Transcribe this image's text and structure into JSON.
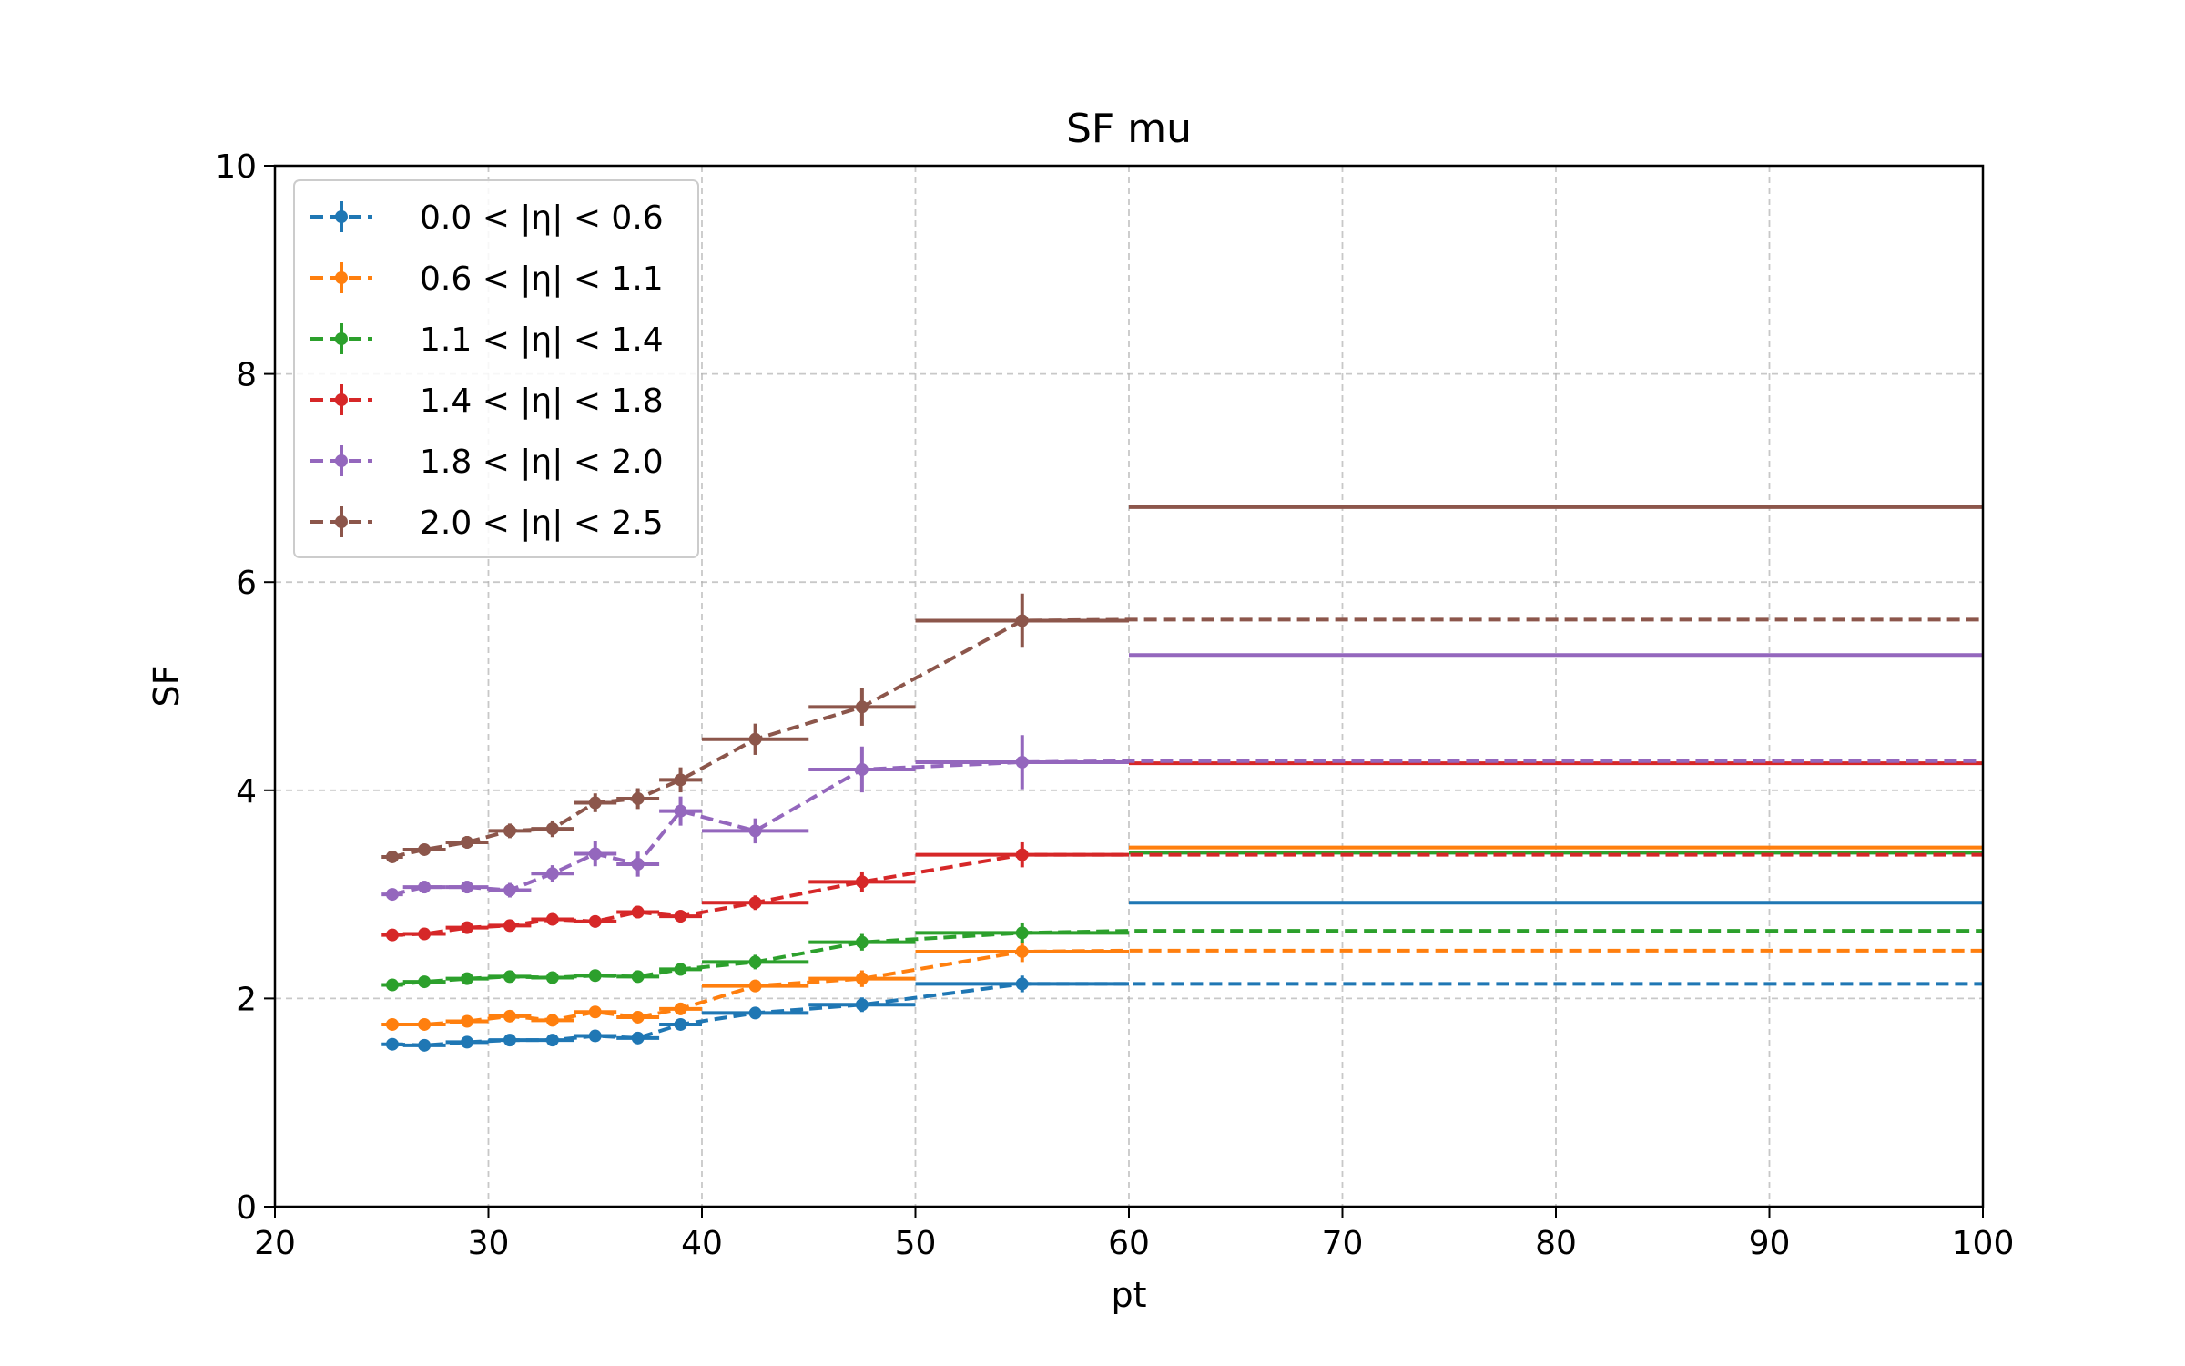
{
  "chart_data": {
    "type": "line",
    "title": "SF mu",
    "xlabel": "pt",
    "ylabel": "SF",
    "xlim": [
      20,
      100
    ],
    "ylim": [
      0,
      10
    ],
    "xticks": [
      20,
      30,
      40,
      50,
      60,
      70,
      80,
      90,
      100
    ],
    "yticks": [
      0,
      2,
      4,
      6,
      8,
      10
    ],
    "grid": true,
    "legend_position": "top-left",
    "bin_edges": [
      25,
      26,
      28,
      30,
      32,
      34,
      36,
      38,
      40,
      45,
      50,
      60
    ],
    "series": [
      {
        "name": "0.0 < |η| < 0.6",
        "color": "#1f77b4",
        "x": [
          25.5,
          27,
          29,
          31,
          33,
          35,
          37,
          39,
          42.5,
          47.5,
          55
        ],
        "y": [
          1.56,
          1.55,
          1.58,
          1.6,
          1.6,
          1.64,
          1.62,
          1.75,
          1.86,
          1.94,
          2.14
        ],
        "yerr": [
          0.03,
          0.03,
          0.03,
          0.03,
          0.03,
          0.04,
          0.04,
          0.05,
          0.05,
          0.07,
          0.08
        ],
        "dashed_tail": 2.14,
        "solid_high_pt": 2.92
      },
      {
        "name": "0.6 < |η| < 1.1",
        "color": "#ff7f0e",
        "x": [
          25.5,
          27,
          29,
          31,
          33,
          35,
          37,
          39,
          42.5,
          47.5,
          55
        ],
        "y": [
          1.75,
          1.75,
          1.78,
          1.83,
          1.79,
          1.87,
          1.82,
          1.9,
          2.12,
          2.19,
          2.45
        ],
        "yerr": [
          0.03,
          0.03,
          0.04,
          0.05,
          0.05,
          0.05,
          0.05,
          0.06,
          0.06,
          0.08,
          0.1
        ],
        "dashed_tail": 2.46,
        "solid_high_pt": 3.45
      },
      {
        "name": "1.1 < |η| < 1.4",
        "color": "#2ca02c",
        "x": [
          25.5,
          27,
          29,
          31,
          33,
          35,
          37,
          39,
          42.5,
          47.5,
          55
        ],
        "y": [
          2.13,
          2.16,
          2.19,
          2.21,
          2.2,
          2.22,
          2.21,
          2.28,
          2.35,
          2.54,
          2.63
        ],
        "yerr": [
          0.04,
          0.04,
          0.04,
          0.05,
          0.05,
          0.05,
          0.05,
          0.06,
          0.07,
          0.08,
          0.1
        ],
        "dashed_tail": 2.65,
        "solid_high_pt": 3.4
      },
      {
        "name": "1.4 < |η| < 1.8",
        "color": "#d62728",
        "x": [
          25.5,
          27,
          29,
          31,
          33,
          35,
          37,
          39,
          42.5,
          47.5,
          55
        ],
        "y": [
          2.61,
          2.62,
          2.68,
          2.7,
          2.76,
          2.74,
          2.83,
          2.79,
          2.92,
          3.12,
          3.38
        ],
        "yerr": [
          0.04,
          0.04,
          0.05,
          0.05,
          0.05,
          0.06,
          0.06,
          0.06,
          0.07,
          0.1,
          0.12
        ],
        "dashed_tail": 3.38,
        "solid_high_pt": 4.26
      },
      {
        "name": "1.8 < |η| < 2.0",
        "color": "#9467bd",
        "x": [
          25.5,
          27,
          29,
          31,
          33,
          35,
          37,
          39,
          42.5,
          47.5,
          55
        ],
        "y": [
          3.0,
          3.07,
          3.07,
          3.04,
          3.2,
          3.39,
          3.29,
          3.8,
          3.61,
          4.2,
          4.27
        ],
        "yerr": [
          0.05,
          0.06,
          0.06,
          0.07,
          0.08,
          0.12,
          0.12,
          0.14,
          0.12,
          0.22,
          0.26
        ],
        "dashed_tail": 4.28,
        "solid_high_pt": 5.3
      },
      {
        "name": "2.0 < |η| < 2.5",
        "color": "#8c564b",
        "x": [
          25.5,
          27,
          29,
          31,
          33,
          35,
          37,
          39,
          42.5,
          47.5,
          55
        ],
        "y": [
          3.36,
          3.43,
          3.5,
          3.61,
          3.63,
          3.88,
          3.92,
          4.1,
          4.49,
          4.8,
          5.63
        ],
        "yerr": [
          0.05,
          0.05,
          0.06,
          0.07,
          0.08,
          0.09,
          0.1,
          0.12,
          0.15,
          0.18,
          0.26
        ],
        "dashed_tail": 5.64,
        "solid_high_pt": 6.72
      }
    ]
  }
}
